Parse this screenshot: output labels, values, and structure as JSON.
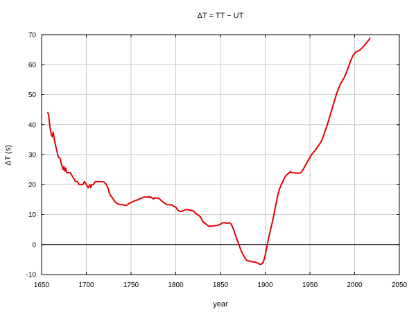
{
  "chart_data": {
    "type": "line",
    "title": "ΔT = TT − UT",
    "xlabel": "year",
    "ylabel": "ΔT (s)",
    "xlim": [
      1650,
      2050
    ],
    "ylim": [
      -10,
      70
    ],
    "x_ticks": [
      "1650",
      "1700",
      "1750",
      "1800",
      "1850",
      "1900",
      "1950",
      "2000",
      "2050"
    ],
    "y_ticks": [
      "-10",
      "0",
      "10",
      "20",
      "30",
      "40",
      "50",
      "60",
      "70"
    ],
    "grid": true,
    "zero_line": true,
    "legend": "none",
    "colors": {
      "series": "#e00000",
      "grid": "#c8c8c8",
      "axis": "#000000"
    },
    "series": [
      {
        "color": "#e00000",
        "points": [
          [
            1657,
            44
          ],
          [
            1658,
            43
          ],
          [
            1659,
            40
          ],
          [
            1660,
            38
          ],
          [
            1661,
            36.5
          ],
          [
            1662,
            36
          ],
          [
            1663,
            37.5
          ],
          [
            1664,
            35.5
          ],
          [
            1665,
            34
          ],
          [
            1666,
            32.5
          ],
          [
            1667,
            31.5
          ],
          [
            1668,
            30
          ],
          [
            1669,
            29
          ],
          [
            1670,
            29
          ],
          [
            1671,
            28.5
          ],
          [
            1672,
            27
          ],
          [
            1673,
            26
          ],
          [
            1674,
            25
          ],
          [
            1675,
            26
          ],
          [
            1676,
            24.5
          ],
          [
            1677,
            25.5
          ],
          [
            1678,
            24
          ],
          [
            1680,
            24
          ],
          [
            1682,
            24
          ],
          [
            1684,
            23
          ],
          [
            1686,
            22
          ],
          [
            1688,
            21
          ],
          [
            1690,
            21
          ],
          [
            1692,
            20
          ],
          [
            1694,
            20
          ],
          [
            1696,
            20
          ],
          [
            1698,
            21
          ],
          [
            1700,
            20
          ],
          [
            1702,
            19
          ],
          [
            1704,
            20
          ],
          [
            1705,
            19
          ],
          [
            1706,
            20
          ],
          [
            1708,
            20
          ],
          [
            1710,
            21
          ],
          [
            1712,
            21
          ],
          [
            1714,
            21
          ],
          [
            1716,
            21
          ],
          [
            1718,
            21
          ],
          [
            1720,
            20.8
          ],
          [
            1722,
            20.2
          ],
          [
            1724,
            19
          ],
          [
            1726,
            17
          ],
          [
            1728,
            16
          ],
          [
            1730,
            15.2
          ],
          [
            1732,
            14.3
          ],
          [
            1734,
            13.8
          ],
          [
            1736,
            13.5
          ],
          [
            1738,
            13.3
          ],
          [
            1740,
            13.3
          ],
          [
            1742,
            13.2
          ],
          [
            1744,
            13
          ],
          [
            1746,
            13.3
          ],
          [
            1748,
            13.8
          ],
          [
            1750,
            14
          ],
          [
            1752,
            14.3
          ],
          [
            1754,
            14.6
          ],
          [
            1756,
            14.8
          ],
          [
            1758,
            15
          ],
          [
            1760,
            15.3
          ],
          [
            1762,
            15.5
          ],
          [
            1764,
            15.8
          ],
          [
            1766,
            15.9
          ],
          [
            1768,
            15.8
          ],
          [
            1770,
            16
          ],
          [
            1771,
            15.7
          ],
          [
            1772,
            15.9
          ],
          [
            1773,
            15.6
          ],
          [
            1774,
            15.5
          ],
          [
            1775,
            15.2
          ],
          [
            1776,
            15.6
          ],
          [
            1778,
            15.5
          ],
          [
            1780,
            15.5
          ],
          [
            1782,
            15.2
          ],
          [
            1784,
            14.6
          ],
          [
            1786,
            14.2
          ],
          [
            1788,
            13.7
          ],
          [
            1790,
            13.3
          ],
          [
            1792,
            13.3
          ],
          [
            1794,
            13.2
          ],
          [
            1796,
            13.2
          ],
          [
            1798,
            12.7
          ],
          [
            1800,
            12.5
          ],
          [
            1802,
            11.6
          ],
          [
            1804,
            11.1
          ],
          [
            1806,
            11
          ],
          [
            1808,
            11.2
          ],
          [
            1810,
            11.6
          ],
          [
            1812,
            11.7
          ],
          [
            1814,
            11.6
          ],
          [
            1816,
            11.5
          ],
          [
            1818,
            11.3
          ],
          [
            1820,
            11.2
          ],
          [
            1822,
            10.5
          ],
          [
            1824,
            10
          ],
          [
            1826,
            9.7
          ],
          [
            1828,
            9
          ],
          [
            1830,
            7.8
          ],
          [
            1832,
            7.2
          ],
          [
            1834,
            6.8
          ],
          [
            1836,
            6.3
          ],
          [
            1838,
            6.1
          ],
          [
            1840,
            6.2
          ],
          [
            1842,
            6.2
          ],
          [
            1844,
            6.3
          ],
          [
            1846,
            6.4
          ],
          [
            1848,
            6.5
          ],
          [
            1850,
            6.8
          ],
          [
            1852,
            7.2
          ],
          [
            1854,
            7.3
          ],
          [
            1856,
            7.2
          ],
          [
            1858,
            7.1
          ],
          [
            1860,
            7.3
          ],
          [
            1862,
            6.8
          ],
          [
            1864,
            5.5
          ],
          [
            1866,
            3.8
          ],
          [
            1868,
            2
          ],
          [
            1870,
            0.5
          ],
          [
            1872,
            -1.2
          ],
          [
            1874,
            -2.6
          ],
          [
            1876,
            -3.8
          ],
          [
            1878,
            -4.8
          ],
          [
            1880,
            -5.4
          ],
          [
            1882,
            -5.5
          ],
          [
            1884,
            -5.6
          ],
          [
            1886,
            -5.8
          ],
          [
            1888,
            -5.8
          ],
          [
            1890,
            -6
          ],
          [
            1892,
            -6.2
          ],
          [
            1894,
            -6.6
          ],
          [
            1896,
            -6.5
          ],
          [
            1898,
            -5.8
          ],
          [
            1900,
            -3.5
          ],
          [
            1902,
            -0.5
          ],
          [
            1904,
            2.5
          ],
          [
            1906,
            5
          ],
          [
            1908,
            7.5
          ],
          [
            1910,
            10.3
          ],
          [
            1912,
            13.5
          ],
          [
            1914,
            16.3
          ],
          [
            1916,
            18.5
          ],
          [
            1918,
            20
          ],
          [
            1920,
            21.2
          ],
          [
            1922,
            22.5
          ],
          [
            1924,
            23.2
          ],
          [
            1926,
            23.7
          ],
          [
            1928,
            24.3
          ],
          [
            1930,
            24
          ],
          [
            1932,
            23.9
          ],
          [
            1934,
            23.9
          ],
          [
            1936,
            23.8
          ],
          [
            1938,
            23.8
          ],
          [
            1940,
            24
          ],
          [
            1942,
            24.8
          ],
          [
            1944,
            25.9
          ],
          [
            1946,
            27
          ],
          [
            1948,
            28
          ],
          [
            1950,
            29.1
          ],
          [
            1952,
            30
          ],
          [
            1954,
            30.8
          ],
          [
            1956,
            31.5
          ],
          [
            1958,
            32.3
          ],
          [
            1960,
            33.2
          ],
          [
            1962,
            34
          ],
          [
            1964,
            35.3
          ],
          [
            1966,
            37
          ],
          [
            1968,
            38.7
          ],
          [
            1970,
            40.5
          ],
          [
            1972,
            42.5
          ],
          [
            1974,
            44.5
          ],
          [
            1976,
            46.5
          ],
          [
            1978,
            48.5
          ],
          [
            1980,
            50.5
          ],
          [
            1982,
            52
          ],
          [
            1984,
            53.5
          ],
          [
            1986,
            54.5
          ],
          [
            1988,
            55.5
          ],
          [
            1990,
            56.8
          ],
          [
            1992,
            58.3
          ],
          [
            1994,
            60
          ],
          [
            1996,
            61.6
          ],
          [
            1998,
            63
          ],
          [
            2000,
            63.8
          ],
          [
            2002,
            64.3
          ],
          [
            2004,
            64.6
          ],
          [
            2006,
            64.9
          ],
          [
            2008,
            65.5
          ],
          [
            2010,
            66.1
          ],
          [
            2012,
            66.8
          ],
          [
            2014,
            67.6
          ],
          [
            2016,
            68.3
          ],
          [
            2017,
            68.8
          ]
        ]
      }
    ]
  }
}
